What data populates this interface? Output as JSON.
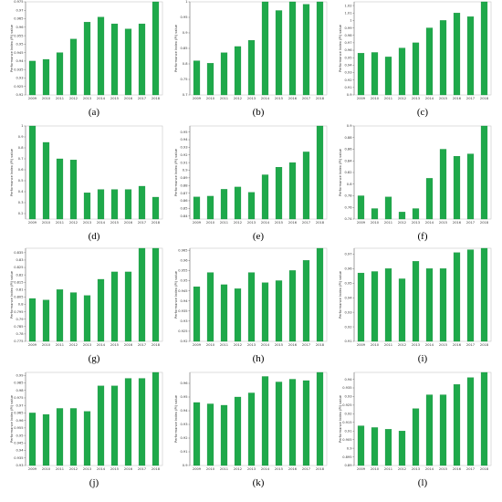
{
  "figure": {
    "bar_color": "#1ea94a",
    "panel_labels": [
      "(a)",
      "(b)",
      "(c)",
      "(d)",
      "(e)",
      "(f)",
      "(g)",
      "(h)",
      "(i)",
      "(j)",
      "(k)",
      "(l)"
    ]
  },
  "chart_data": [
    {
      "type": "bar",
      "title": "",
      "xlabel": "",
      "ylabel": "Performance Index (PI) value",
      "categories": [
        "2009",
        "2010",
        "2011",
        "2012",
        "2013",
        "2014",
        "2015",
        "2016",
        "2017",
        "2018"
      ],
      "values": [
        0.94,
        0.941,
        0.945,
        0.953,
        0.963,
        0.966,
        0.962,
        0.959,
        0.962,
        0.975
      ],
      "ylim": [
        0.92,
        0.975
      ],
      "grid": false,
      "legend": "none"
    },
    {
      "type": "bar",
      "title": "",
      "xlabel": "",
      "ylabel": "Performance Index (PI) value",
      "categories": [
        "2009",
        "2010",
        "2011",
        "2012",
        "2013",
        "2014",
        "2015",
        "2016",
        "2017",
        "2018"
      ],
      "values": [
        0.81,
        0.802,
        0.836,
        0.856,
        0.876,
        1.0,
        0.972,
        1.0,
        0.992,
        1.0
      ],
      "ylim": [
        0.7,
        1.0
      ],
      "grid": false,
      "legend": "none"
    },
    {
      "type": "bar",
      "title": "",
      "xlabel": "",
      "ylabel": "Performance Index (PI) value",
      "categories": [
        "2009",
        "2010",
        "2011",
        "2012",
        "2013",
        "2014",
        "2015",
        "2016",
        "2017",
        "2018"
      ],
      "values": [
        0.956,
        0.957,
        0.951,
        0.963,
        0.97,
        0.99,
        1.0,
        1.01,
        1.005,
        1.025
      ],
      "ylim": [
        0.9,
        1.025
      ],
      "grid": false,
      "legend": "none"
    },
    {
      "type": "bar",
      "title": "",
      "xlabel": "",
      "ylabel": "Performance Index (PI) value",
      "categories": [
        "2009",
        "2010",
        "2011",
        "2012",
        "2013",
        "2014",
        "2015",
        "2016",
        "2017",
        "2018"
      ],
      "values": [
        1.0,
        0.85,
        0.7,
        0.69,
        0.39,
        0.42,
        0.42,
        0.42,
        0.45,
        0.35
      ],
      "ylim": [
        0.15,
        1.0
      ],
      "grid": false,
      "legend": "none"
    },
    {
      "type": "bar",
      "title": "",
      "xlabel": "",
      "ylabel": "Performance Index (PI) value",
      "categories": [
        "2009",
        "2010",
        "2011",
        "2012",
        "2013",
        "2014",
        "2015",
        "2016",
        "2017",
        "2018"
      ],
      "values": [
        0.865,
        0.866,
        0.875,
        0.878,
        0.871,
        0.894,
        0.904,
        0.91,
        0.924,
        0.958
      ],
      "ylim": [
        0.836,
        0.958
      ],
      "grid": false,
      "legend": "none"
    },
    {
      "type": "bar",
      "title": "",
      "xlabel": "",
      "ylabel": "Performance Index (PI) value",
      "categories": [
        "2009",
        "2010",
        "2011",
        "2012",
        "2013",
        "2014",
        "2015",
        "2016",
        "2017",
        "2018"
      ],
      "values": [
        0.78,
        0.758,
        0.778,
        0.752,
        0.758,
        0.81,
        0.86,
        0.848,
        0.852,
        0.9
      ],
      "ylim": [
        0.74,
        0.9
      ],
      "grid": false,
      "legend": "none"
    },
    {
      "type": "bar",
      "title": "",
      "xlabel": "",
      "ylabel": "Performance Index (PI) value",
      "categories": [
        "2009",
        "2010",
        "2011",
        "2012",
        "2013",
        "2014",
        "2015",
        "2016",
        "2017",
        "2018"
      ],
      "values": [
        0.804,
        0.803,
        0.81,
        0.808,
        0.806,
        0.817,
        0.822,
        0.822,
        0.838,
        0.838
      ],
      "ylim": [
        0.775,
        0.838
      ],
      "grid": false,
      "legend": "none"
    },
    {
      "type": "bar",
      "title": "",
      "xlabel": "",
      "ylabel": "Performance Index (PI) value",
      "categories": [
        "2009",
        "2010",
        "2011",
        "2012",
        "2013",
        "2014",
        "2015",
        "2016",
        "2017",
        "2018"
      ],
      "values": [
        0.947,
        0.954,
        0.948,
        0.946,
        0.954,
        0.949,
        0.95,
        0.955,
        0.96,
        0.966
      ],
      "ylim": [
        0.92,
        0.966
      ],
      "grid": false,
      "legend": "none"
    },
    {
      "type": "bar",
      "title": "",
      "xlabel": "",
      "ylabel": "Performance Index (PI) value",
      "categories": [
        "2009",
        "2010",
        "2011",
        "2012",
        "2013",
        "2014",
        "2015",
        "2016",
        "2017",
        "2018"
      ],
      "values": [
        0.957,
        0.958,
        0.96,
        0.953,
        0.965,
        0.96,
        0.96,
        0.971,
        0.973,
        0.974
      ],
      "ylim": [
        0.91,
        0.974
      ],
      "grid": false,
      "legend": "none"
    },
    {
      "type": "bar",
      "title": "",
      "xlabel": "",
      "ylabel": "Performance Index (PI) value",
      "categories": [
        "2009",
        "2010",
        "2011",
        "2012",
        "2013",
        "2014",
        "2015",
        "2016",
        "2017",
        "2018"
      ],
      "values": [
        0.965,
        0.964,
        0.968,
        0.968,
        0.966,
        0.983,
        0.983,
        0.988,
        0.988,
        0.992
      ],
      "ylim": [
        0.93,
        0.992
      ],
      "grid": false,
      "legend": "none"
    },
    {
      "type": "bar",
      "title": "",
      "xlabel": "",
      "ylabel": "Performance Index (PI) value",
      "categories": [
        "2009",
        "2010",
        "2011",
        "2012",
        "2013",
        "2014",
        "2015",
        "2016",
        "2017",
        "2018"
      ],
      "values": [
        0.946,
        0.945,
        0.944,
        0.95,
        0.953,
        0.965,
        0.961,
        0.963,
        0.962,
        0.968
      ],
      "ylim": [
        0.9,
        0.968
      ],
      "grid": false,
      "legend": "none"
    },
    {
      "type": "bar",
      "title": "",
      "xlabel": "",
      "ylabel": "Performance Index (PI) value",
      "categories": [
        "2009",
        "2010",
        "2011",
        "2012",
        "2013",
        "2014",
        "2015",
        "2016",
        "2017",
        "2018"
      ],
      "values": [
        0.913,
        0.912,
        0.911,
        0.91,
        0.923,
        0.931,
        0.931,
        0.937,
        0.941,
        0.944
      ],
      "ylim": [
        0.89,
        0.944
      ],
      "grid": false,
      "legend": "none"
    }
  ]
}
